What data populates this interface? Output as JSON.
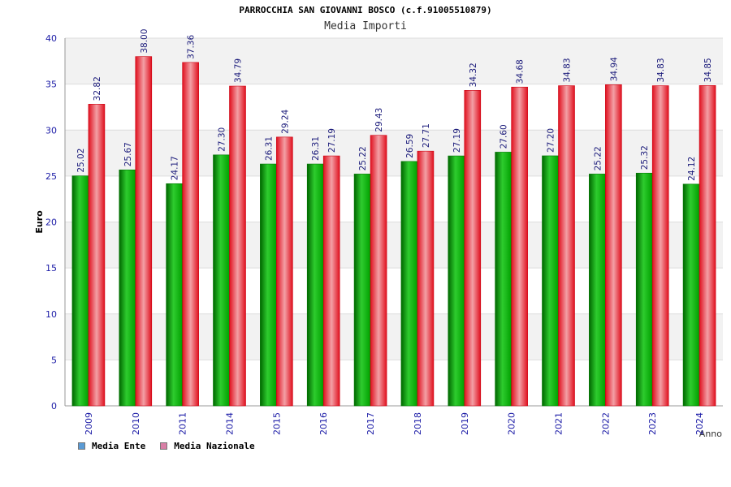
{
  "chart_data": {
    "type": "bar",
    "title": "PARROCCHIA SAN GIOVANNI BOSCO (c.f.91005510879)",
    "subtitle": "Media Importi",
    "xlabel": "Anno",
    "ylabel": "Euro",
    "ylim": [
      0,
      40
    ],
    "yticks": [
      0,
      5,
      10,
      15,
      20,
      25,
      30,
      35,
      40
    ],
    "grid": true,
    "legend_position": "bottom-left",
    "categories": [
      "2009",
      "2010",
      "2011",
      "2014",
      "2015",
      "2016",
      "2017",
      "2018",
      "2019",
      "2020",
      "2021",
      "2022",
      "2023",
      "2024"
    ],
    "series": [
      {
        "name": "Media Ente",
        "color": "#00aa00",
        "legend_color": "#5b9bd5",
        "values": [
          25.02,
          25.67,
          24.17,
          27.3,
          26.31,
          26.31,
          25.22,
          26.59,
          27.19,
          27.6,
          27.2,
          25.22,
          25.32,
          24.12
        ],
        "labels": [
          "25.02",
          "25.67",
          "24.17",
          "27.30",
          "26.31",
          "26.31",
          "25.22",
          "26.59",
          "27.19",
          "27.60",
          "27.20",
          "25.22",
          "25.32",
          "24.12"
        ]
      },
      {
        "name": "Media Nazionale",
        "color": "#ee1111",
        "legend_color": "#d97fa6",
        "values": [
          32.82,
          38.0,
          37.36,
          34.79,
          29.24,
          27.19,
          29.43,
          27.71,
          34.32,
          34.68,
          34.83,
          34.94,
          34.83,
          34.85
        ],
        "labels": [
          "32.82",
          "38.00",
          "37.36",
          "34.79",
          "29.24",
          "27.19",
          "29.43",
          "27.71",
          "34.32",
          "34.68",
          "34.83",
          "34.94",
          "34.83",
          "34.85"
        ]
      }
    ]
  }
}
